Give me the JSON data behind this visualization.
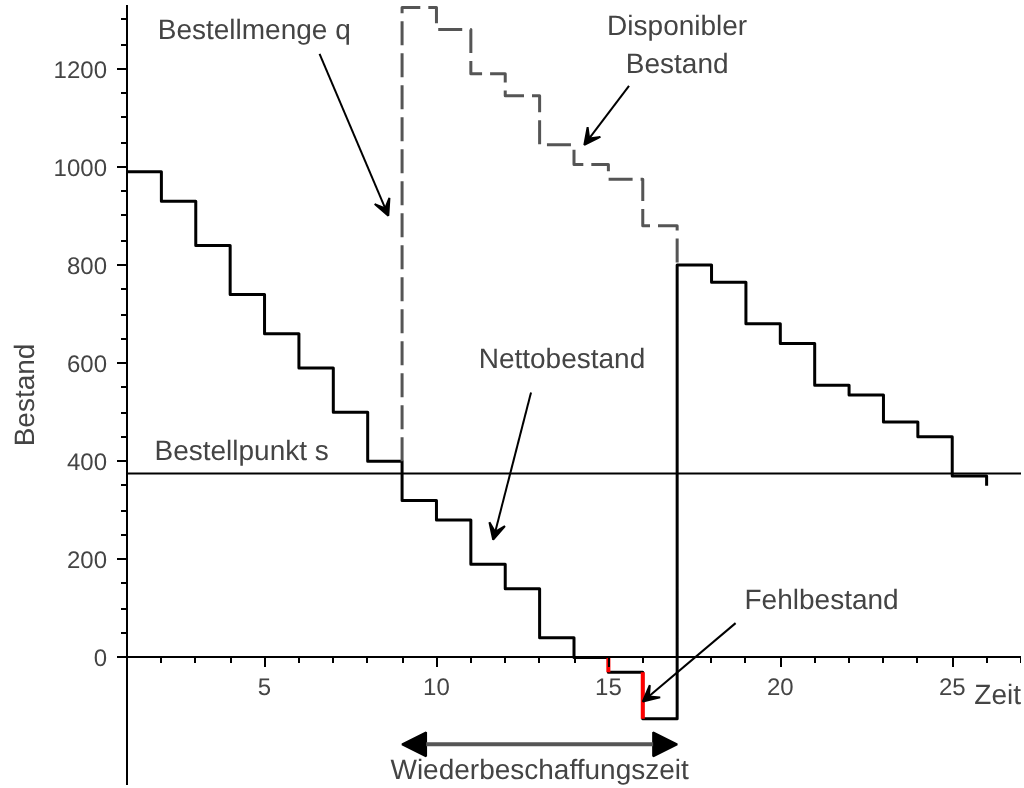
{
  "chart_data": {
    "type": "step",
    "xlabel": "Zeit",
    "ylabel": "Bestand",
    "xlim": [
      1,
      27
    ],
    "ylim": [
      -260,
      1330
    ],
    "xticks": [
      5,
      10,
      15,
      20,
      25
    ],
    "yticks": [
      0,
      200,
      400,
      600,
      800,
      1000,
      1200
    ],
    "series": [
      {
        "name": "Nettobestand",
        "color": "#000000",
        "line_style": "solid",
        "x": [
          1,
          2,
          3,
          4,
          5,
          6,
          7,
          8,
          9,
          10,
          11,
          12,
          13,
          14,
          15,
          16,
          17,
          18,
          19,
          20,
          21,
          22,
          23,
          24,
          25,
          26
        ],
        "values": [
          990,
          930,
          840,
          740,
          660,
          590,
          500,
          400,
          320,
          280,
          190,
          140,
          40,
          0,
          -30,
          -125,
          800,
          765,
          680,
          640,
          555,
          535,
          480,
          450,
          370,
          350
        ]
      },
      {
        "name": "Disponibler\nBestand",
        "color": "#555555",
        "line_style": "dashed",
        "x": [
          9,
          9,
          10,
          11,
          12,
          13,
          14,
          15,
          16,
          17
        ],
        "values": [
          400,
          1325,
          1280,
          1190,
          1145,
          1045,
          1005,
          975,
          880,
          800
        ]
      },
      {
        "name": "Fehlbestand",
        "type": "line",
        "color": "#ff0000",
        "line_style": "solid",
        "x": [
          15,
          15,
          null,
          16,
          16
        ],
        "values": [
          0,
          -30,
          null,
          -30,
          -125
        ]
      }
    ],
    "ref_lines": [
      {
        "axis": "y",
        "value": 375,
        "label": "Bestellpunkt s",
        "color": "#000000"
      }
    ],
    "annotations": [
      "Bestellmenge q",
      "Wiederbeschaffungszeit"
    ]
  }
}
